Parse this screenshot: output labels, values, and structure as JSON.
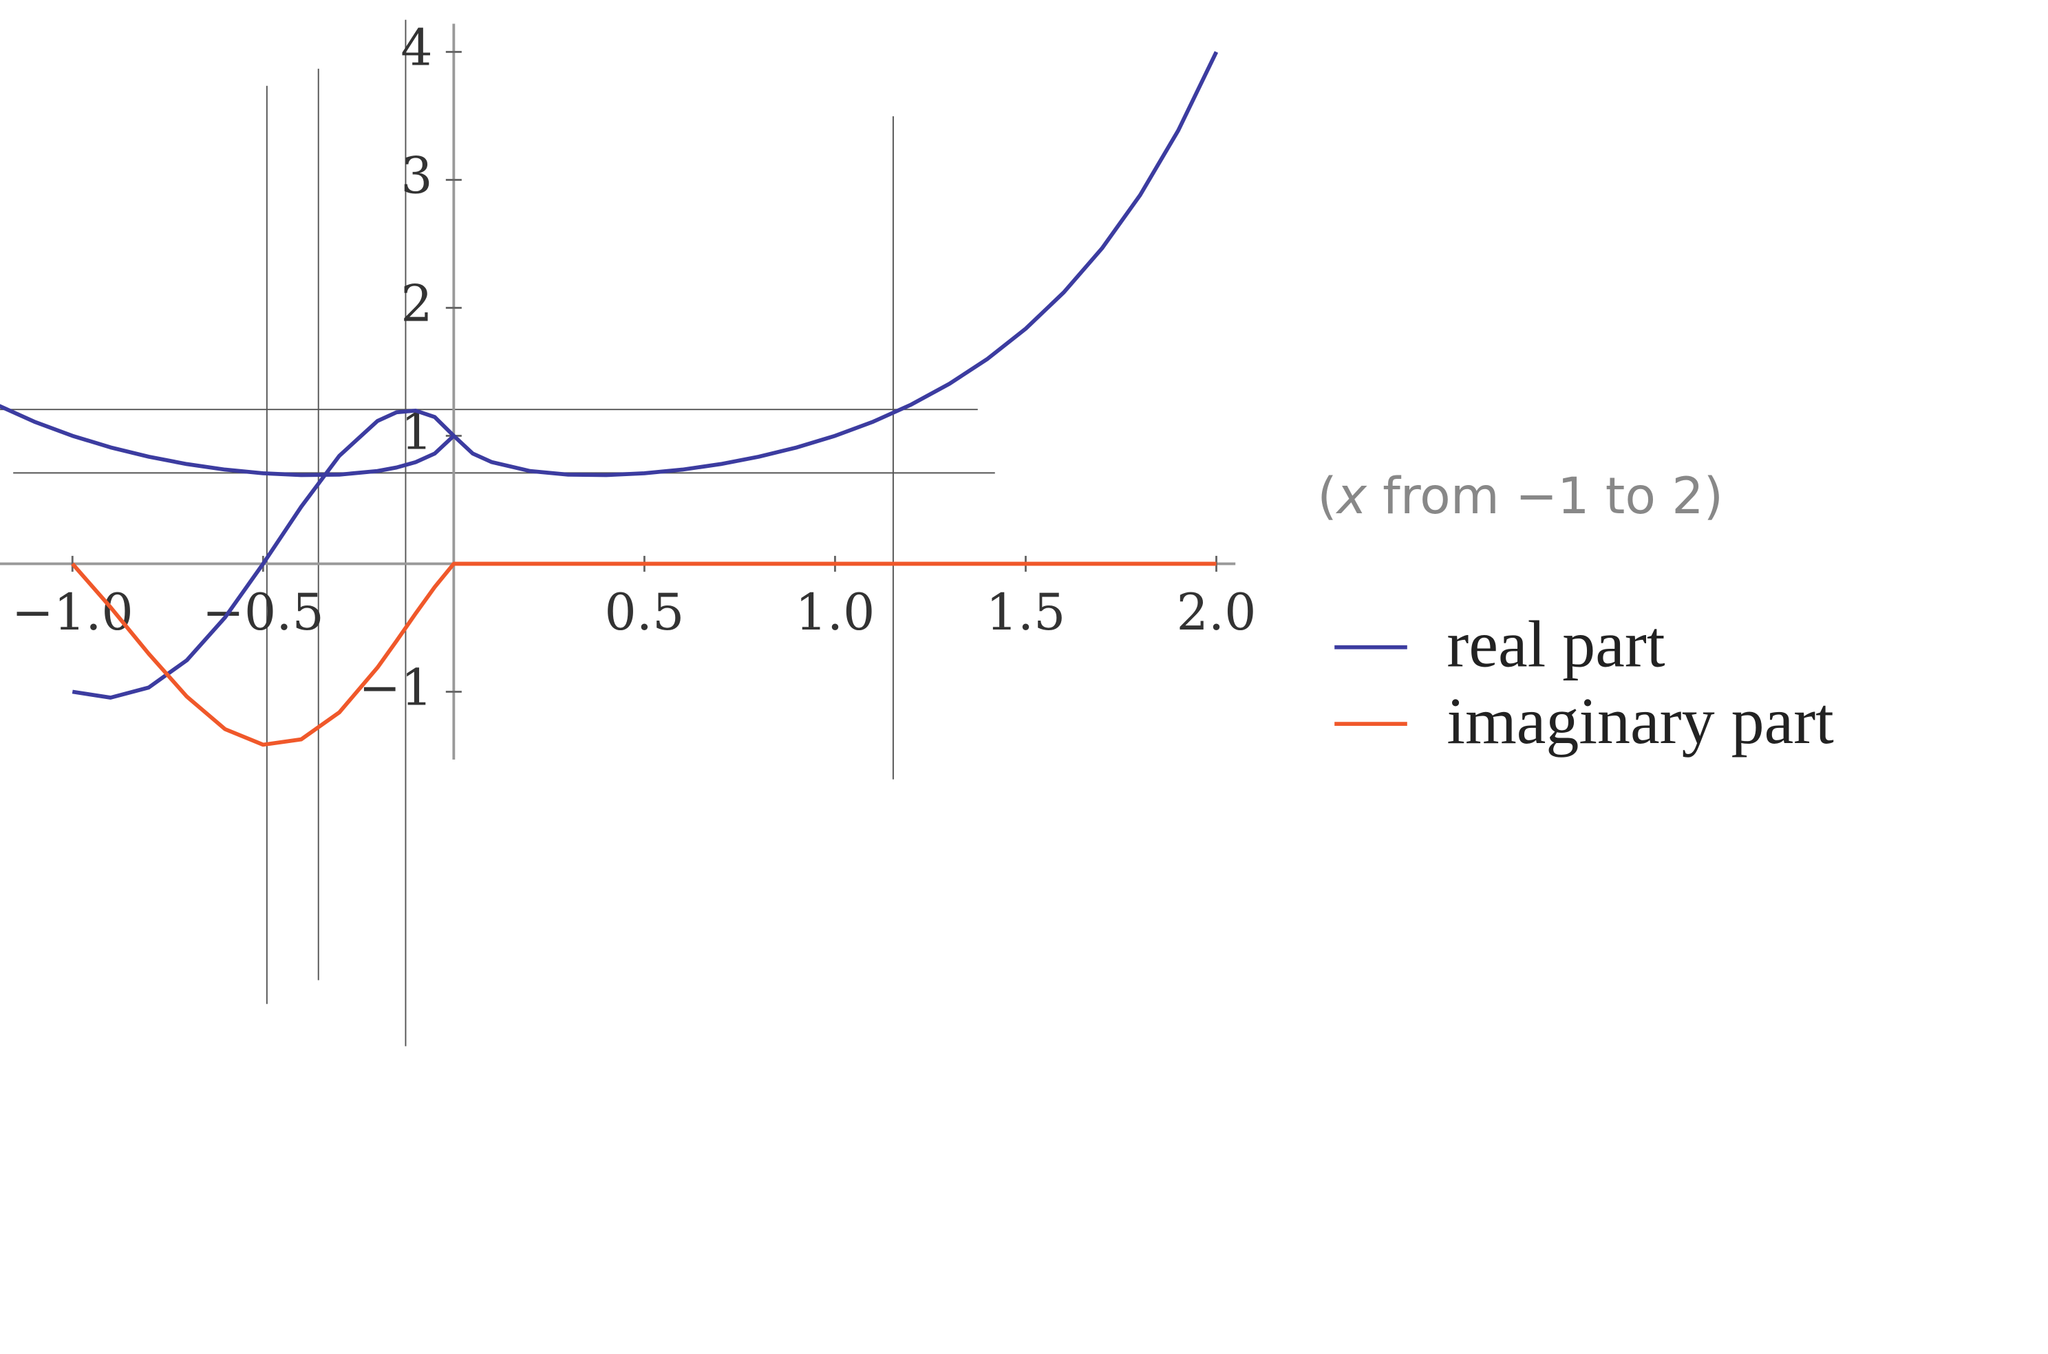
{
  "chart_data": {
    "type": "line",
    "annotation": {
      "open": "(",
      "variable": "x",
      "rest": " from −1 to 2)"
    },
    "x": [
      -1.2,
      -1.1,
      -1.0,
      -0.9,
      -0.8,
      -0.7,
      -0.6,
      -0.5,
      -0.4,
      -0.3,
      -0.2,
      -0.15,
      -0.1,
      -0.05,
      0,
      0.05,
      0.1,
      0.2,
      0.3,
      0.4,
      0.5,
      0.6,
      0.7,
      0.8,
      0.9,
      1.0,
      1.1,
      1.2,
      1.3,
      1.4,
      1.5,
      1.6,
      1.7,
      1.8,
      1.9,
      2.0
    ],
    "series": [
      {
        "name": "real part",
        "color": "#3c3ca0",
        "values": [
          null,
          null,
          -1,
          -1.046,
          -0.967,
          -0.754,
          -0.42,
          0,
          0.446,
          0.844,
          1.116,
          1.184,
          1.197,
          1.147,
          1,
          0.8609,
          0.7943,
          0.7248,
          0.6968,
          0.6931,
          0.7071,
          0.736,
          0.7791,
          0.8365,
          0.9095,
          1,
          1.1105,
          1.2446,
          1.4065,
          1.6017,
          1.8371,
          2.1213,
          2.4647,
          2.8807,
          3.3856,
          4
        ]
      },
      {
        "name": "imaginary part",
        "color": "#f0582a",
        "values": [
          null,
          null,
          0,
          -0.34,
          -0.703,
          -1.038,
          -1.292,
          -1.414,
          -1.372,
          -1.161,
          -0.811,
          -0.603,
          -0.389,
          -0.182,
          0,
          0,
          0,
          0,
          0,
          0,
          0,
          0,
          0,
          0,
          0,
          0,
          0,
          0,
          0,
          0,
          0,
          0,
          0,
          0,
          0,
          0
        ]
      },
      {
        "color": "#3c3ca0",
        "values": [
          1.2446,
          1.1105,
          1,
          0.9095,
          0.8365,
          0.7791,
          0.736,
          0.7071,
          0.6931,
          0.6968,
          0.7248,
          0.7524,
          0.7943,
          0.8609,
          1,
          null,
          null,
          null,
          null,
          null,
          null,
          null,
          null,
          null,
          null,
          null,
          null,
          null,
          null,
          null,
          null,
          null,
          null,
          null,
          null,
          null
        ]
      }
    ],
    "xlim": [
      -1.19,
      2.05
    ],
    "ylim": [
      -1.53,
      4.22
    ],
    "xticks": [
      {
        "value": -1.0,
        "label": "−1.0"
      },
      {
        "value": -0.5,
        "label": "−0.5"
      },
      0.5,
      {
        "value": 1.0,
        "label": "1.0"
      },
      1.5,
      {
        "value": 2.0,
        "label": "2.0"
      }
    ],
    "yticks": [
      {
        "value": -1,
        "label": "−1"
      },
      1,
      2,
      3,
      4
    ]
  }
}
